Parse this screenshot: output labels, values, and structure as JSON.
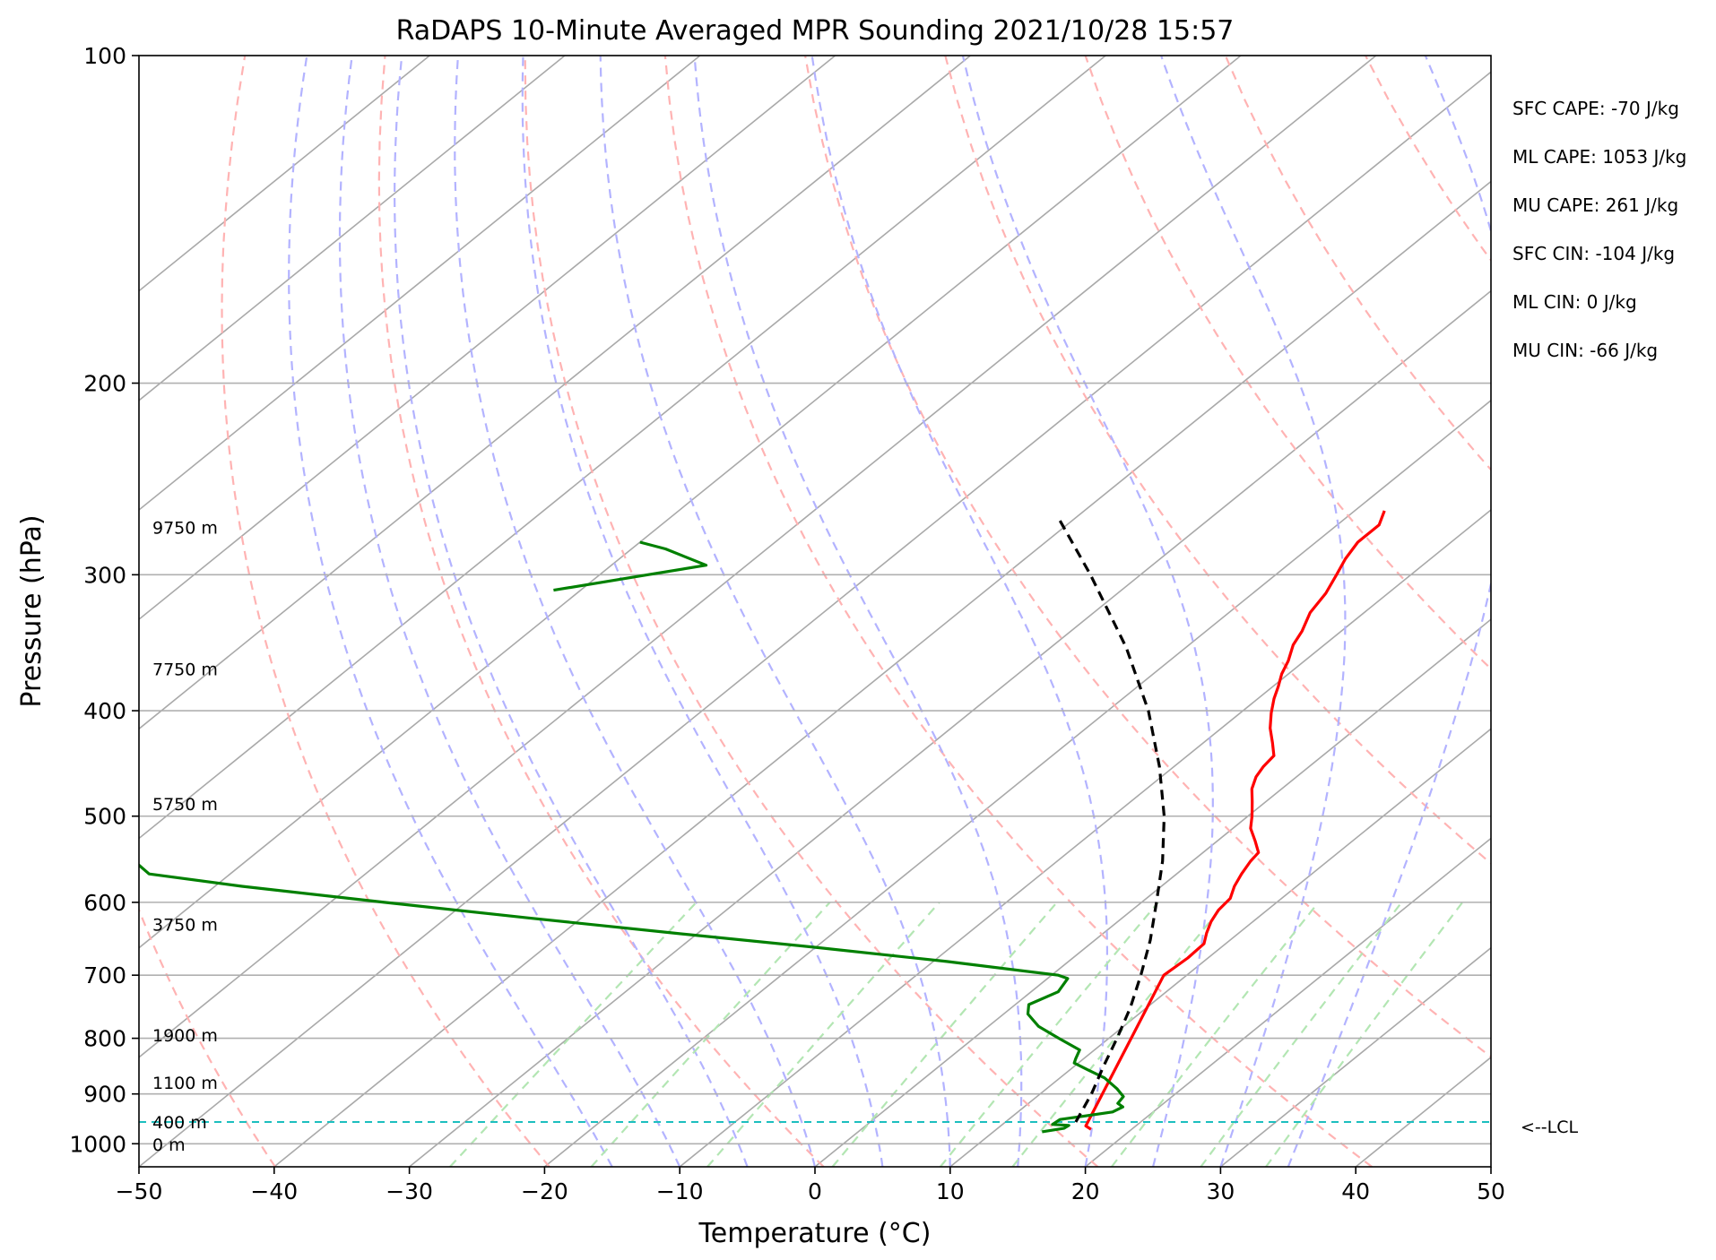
{
  "chart_data": {
    "type": "line",
    "title": "RaDAPS 10-Minute Averaged MPR Sounding 2021/10/28 15:57",
    "xlabel": "Temperature (°C)",
    "ylabel": "Pressure (hPa)",
    "xlim": [
      -50,
      50
    ],
    "ylim": [
      1050,
      100
    ],
    "yscale": "log",
    "x_ticks": [
      -50,
      -40,
      -30,
      -20,
      -10,
      0,
      10,
      20,
      30,
      40,
      50
    ],
    "x_tick_labels": [
      "−50",
      "−40",
      "−30",
      "−20",
      "−10",
      "0",
      "10",
      "20",
      "30",
      "40",
      "50"
    ],
    "y_ticks": [
      100,
      200,
      300,
      400,
      500,
      600,
      700,
      800,
      900,
      1000
    ],
    "y_tick_labels": [
      "100",
      "200",
      "300",
      "400",
      "500",
      "600",
      "700",
      "800",
      "900",
      "1000"
    ],
    "grid": true,
    "reference_lines": {
      "isotherms": [
        -130,
        -120,
        -110,
        -100,
        -90,
        -80,
        -70,
        -60,
        -50,
        -40,
        -30,
        -20,
        -10,
        0,
        10,
        20,
        30,
        40,
        50
      ],
      "dry_adiabats_theta_k": [
        230,
        250,
        270,
        290,
        310,
        330,
        350,
        370,
        390,
        410,
        430,
        450,
        470,
        490,
        510,
        530
      ],
      "moist_adiabats_start_c": [
        -15,
        -10,
        -5,
        0,
        5,
        10,
        15,
        20,
        25,
        30,
        35
      ],
      "mixing_ratio_lines_gkg": [
        0.4,
        1,
        2,
        4,
        7,
        10,
        16,
        24,
        32
      ]
    },
    "series": [
      {
        "color": "#ff0000",
        "points": [
          {
            "p": 970,
            "t": 17.0
          },
          {
            "p": 963,
            "t": 16.3
          },
          {
            "p": 700,
            "t": 8.3
          },
          {
            "p": 675,
            "t": 8.5
          },
          {
            "p": 655,
            "t": 8.4
          },
          {
            "p": 640,
            "t": 7.6
          },
          {
            "p": 625,
            "t": 6.9
          },
          {
            "p": 610,
            "t": 6.4
          },
          {
            "p": 595,
            "t": 6.2
          },
          {
            "p": 580,
            "t": 5.4
          },
          {
            "p": 565,
            "t": 4.8
          },
          {
            "p": 550,
            "t": 4.3
          },
          {
            "p": 540,
            "t": 4.1
          },
          {
            "p": 527,
            "t": 2.8
          },
          {
            "p": 513,
            "t": 1.3
          },
          {
            "p": 500,
            "t": 0.3
          },
          {
            "p": 485,
            "t": -1.0
          },
          {
            "p": 472,
            "t": -2.2
          },
          {
            "p": 460,
            "t": -3.0
          },
          {
            "p": 450,
            "t": -3.4
          },
          {
            "p": 440,
            "t": -3.6
          },
          {
            "p": 428,
            "t": -4.9
          },
          {
            "p": 415,
            "t": -6.4
          },
          {
            "p": 402,
            "t": -7.7
          },
          {
            "p": 390,
            "t": -8.8
          },
          {
            "p": 380,
            "t": -9.6
          },
          {
            "p": 370,
            "t": -10.5
          },
          {
            "p": 360,
            "t": -11.2
          },
          {
            "p": 348,
            "t": -12.3
          },
          {
            "p": 338,
            "t": -12.9
          },
          {
            "p": 325,
            "t": -14.0
          },
          {
            "p": 312,
            "t": -14.6
          },
          {
            "p": 300,
            "t": -15.5
          },
          {
            "p": 290,
            "t": -16.3
          },
          {
            "p": 280,
            "t": -16.9
          },
          {
            "p": 270,
            "t": -16.9
          },
          {
            "p": 262,
            "t": -17.8
          }
        ]
      },
      {
        "color": "#008000",
        "points": [
          {
            "p": 975,
            "t": 13.6
          },
          {
            "p": 968,
            "t": 14.9
          },
          {
            "p": 962,
            "t": 15.0
          },
          {
            "p": 960,
            "t": 13.7
          },
          {
            "p": 950,
            "t": 13.8
          },
          {
            "p": 942,
            "t": 15.5
          },
          {
            "p": 935,
            "t": 17.0
          },
          {
            "p": 925,
            "t": 17.3
          },
          {
            "p": 918,
            "t": 16.6
          },
          {
            "p": 905,
            "t": 16.4
          },
          {
            "p": 890,
            "t": 15.2
          },
          {
            "p": 870,
            "t": 13.3
          },
          {
            "p": 855,
            "t": 11.3
          },
          {
            "p": 843,
            "t": 9.7
          },
          {
            "p": 835,
            "t": 9.4
          },
          {
            "p": 820,
            "t": 8.9
          },
          {
            "p": 800,
            "t": 6.3
          },
          {
            "p": 780,
            "t": 3.7
          },
          {
            "p": 760,
            "t": 1.8
          },
          {
            "p": 745,
            "t": 1.0
          },
          {
            "p": 725,
            "t": 2.0
          },
          {
            "p": 705,
            "t": 1.5
          },
          {
            "p": 700,
            "t": 0.5
          },
          {
            "p": 680,
            "t": -9.0
          },
          {
            "p": 660,
            "t": -20.0
          },
          {
            "p": 640,
            "t": -32.0
          },
          {
            "p": 620,
            "t": -44.0
          },
          {
            "p": 600,
            "t": -56.0
          },
          {
            "p": 580,
            "t": -68.0
          },
          {
            "p": 565,
            "t": -76.0
          },
          {
            "p": 545,
            "t": -79.0
          },
          {
            "p": 530,
            "t": -83.0
          },
          {
            "p": 525,
            "t": -84.0
          }
        ]
      },
      {
        "color": "#008000",
        "points": [
          {
            "p": 310,
            "t": -72.0
          },
          {
            "p": 301,
            "t": -67.0
          },
          {
            "p": 294,
            "t": -63.0
          },
          {
            "p": 284,
            "t": -67.5
          },
          {
            "p": 280,
            "t": -70.0
          }
        ]
      },
      {
        "color": "#000000",
        "dashed": true,
        "points": [
          {
            "p": 955,
            "t": 15.2
          },
          {
            "p": 900,
            "t": 13.8
          },
          {
            "p": 850,
            "t": 12.2
          },
          {
            "p": 800,
            "t": 10.6
          },
          {
            "p": 750,
            "t": 8.8
          },
          {
            "p": 700,
            "t": 6.6
          },
          {
            "p": 650,
            "t": 4.1
          },
          {
            "p": 600,
            "t": 1.1
          },
          {
            "p": 550,
            "t": -2.2
          },
          {
            "p": 500,
            "t": -6.2
          },
          {
            "p": 450,
            "t": -11.1
          },
          {
            "p": 400,
            "t": -17.0
          },
          {
            "p": 350,
            "t": -24.4
          },
          {
            "p": 300,
            "t": -33.7
          },
          {
            "p": 265,
            "t": -41.5
          }
        ]
      }
    ],
    "lcl_pressure": 955,
    "lcl_label": "<--LCL",
    "height_labels": [
      {
        "text": "9750 m",
        "p": 272
      },
      {
        "text": "7750 m",
        "p": 367
      },
      {
        "text": "5750 m",
        "p": 488
      },
      {
        "text": "3750 m",
        "p": 630
      },
      {
        "text": "1900 m",
        "p": 796
      },
      {
        "text": "1100 m",
        "p": 880
      },
      {
        "text": "400 m",
        "p": 957
      },
      {
        "text": "0 m",
        "p": 1003
      }
    ],
    "stats": [
      "SFC CAPE: -70 J/kg",
      "ML CAPE: 1053 J/kg",
      "MU CAPE: 261 J/kg",
      "SFC CIN: -104 J/kg",
      "ML CIN: 0 J/kg",
      "MU CIN: -66 J/kg"
    ]
  }
}
